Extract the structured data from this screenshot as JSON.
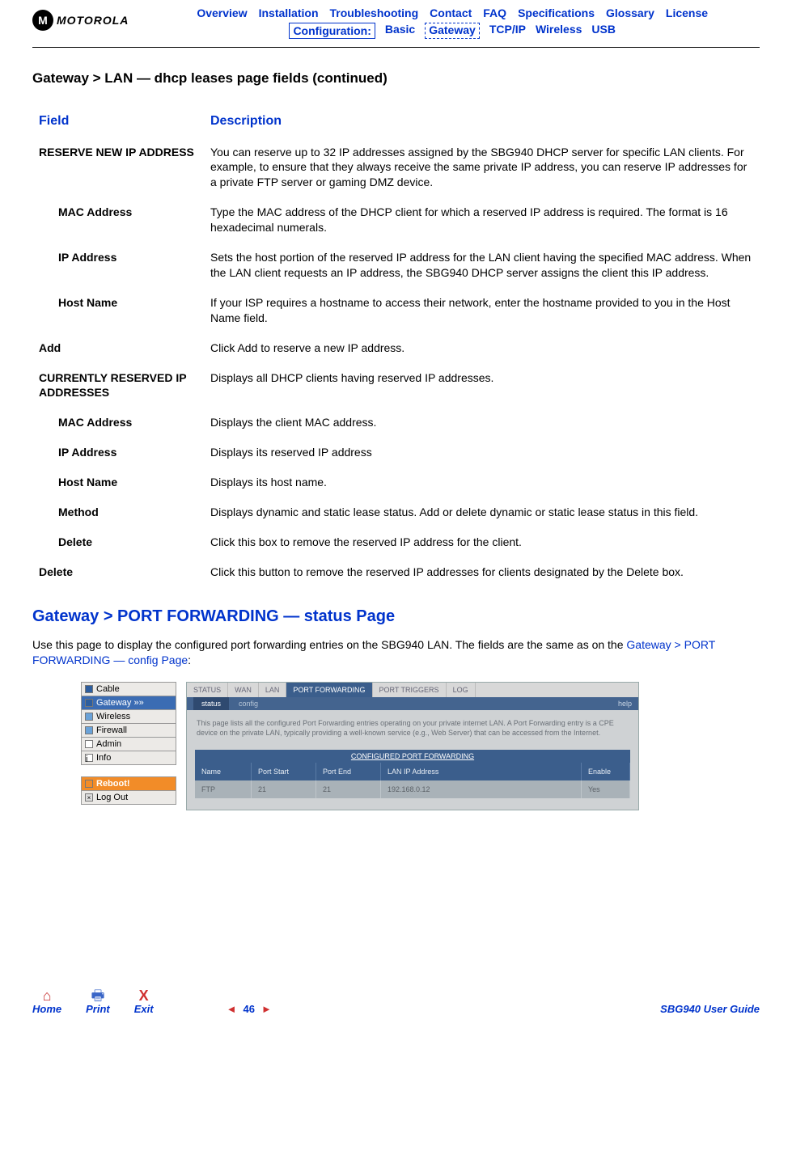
{
  "logo_text": "MOTOROLA",
  "nav1": [
    "Overview",
    "Installation",
    "Troubleshooting",
    "Contact",
    "FAQ",
    "Specifications",
    "Glossary",
    "License"
  ],
  "nav2_label": "Configuration:",
  "nav2": [
    "Basic",
    "Gateway",
    "TCP/IP",
    "Wireless",
    "USB"
  ],
  "nav2_selected": "Gateway",
  "page_title": "Gateway > LAN — dhcp leases page fields (continued)",
  "header_field": "Field",
  "header_desc": "Description",
  "rows": [
    {
      "field": "RESERVE NEW IP ADDRESS",
      "indent": false,
      "desc": "You can reserve up to 32 IP addresses assigned by the SBG940 DHCP server for specific LAN clients. For example, to ensure that they always receive the same private IP address, you can reserve IP addresses for a private FTP server or gaming DMZ device."
    },
    {
      "field": "MAC Address",
      "indent": true,
      "desc": "Type the MAC address of the DHCP client for which a reserved IP address is required. The format is 16 hexadecimal numerals."
    },
    {
      "field": "IP Address",
      "indent": true,
      "desc": "Sets the host portion of the reserved IP address for the LAN client having the specified MAC address. When the LAN client requests an IP address, the SBG940 DHCP server assigns the client this IP address."
    },
    {
      "field": "Host Name",
      "indent": true,
      "desc": "If your ISP requires a hostname to access their network, enter the hostname provided to you in the Host Name field."
    },
    {
      "field": "Add",
      "indent": false,
      "desc": "Click Add to reserve a new IP address."
    },
    {
      "field": "CURRENTLY RESERVED IP ADDRESSES",
      "indent": false,
      "desc": "Displays all DHCP clients having reserved IP addresses."
    },
    {
      "field": "MAC Address",
      "indent": true,
      "desc": "Displays the client MAC address."
    },
    {
      "field": "IP Address",
      "indent": true,
      "desc": "Displays its reserved IP address"
    },
    {
      "field": "Host Name",
      "indent": true,
      "desc": "Displays its host name."
    },
    {
      "field": "Method",
      "indent": true,
      "desc": "Displays dynamic and static lease status. Add or delete dynamic or static lease status in this field."
    },
    {
      "field": "Delete",
      "indent": true,
      "desc": "Click this box to remove the reserved IP address for the client."
    },
    {
      "field": "Delete",
      "indent": false,
      "desc": "Click this button to remove the reserved IP addresses for clients designated by the Delete box."
    }
  ],
  "section_heading": "Gateway > PORT FORWARDING — status Page",
  "section_body_a": "Use this page to display the configured port forwarding entries on the SBG940 LAN. The fields are the same as on the ",
  "section_link": "Gateway > PORT FORWARDING — config Page",
  "section_body_b": ":",
  "sidebar": [
    {
      "label": "Cable",
      "type": "dark"
    },
    {
      "label": "Gateway   »»",
      "type": "active"
    },
    {
      "label": "Wireless",
      "type": "blue"
    },
    {
      "label": "Firewall",
      "type": "blue"
    },
    {
      "label": "Admin",
      "type": "none"
    },
    {
      "label": "Info",
      "type": "i"
    }
  ],
  "sidebar2": [
    {
      "label": "Reboot!",
      "type": "reboot"
    },
    {
      "label": "Log Out",
      "type": "x"
    }
  ],
  "tabs1": [
    "STATUS",
    "WAN",
    "LAN",
    "PORT FORWARDING",
    "PORT TRIGGERS",
    "LOG"
  ],
  "tabs1_active": "PORT FORWARDING",
  "tabs2": {
    "status": "status",
    "config": "config",
    "help": "help"
  },
  "panel_desc": "This page lists all the configured Port Forwarding entries operating on your private internet LAN. A Port Forwarding entry is a CPE device on the private LAN, typically providing a well-known service (e.g., Web Server) that can be accessed from the Internet.",
  "pf_title": "CONFIGURED PORT FORWARDING",
  "pf_columns": [
    "Name",
    "Port Start",
    "Port End",
    "LAN IP Address",
    "Enable"
  ],
  "pf_row": [
    "FTP",
    "21",
    "21",
    "192.168.0.12",
    "Yes"
  ],
  "footer": {
    "home": "Home",
    "print": "Print",
    "exit": "Exit",
    "page": "46",
    "guide": "SBG940 User Guide"
  }
}
